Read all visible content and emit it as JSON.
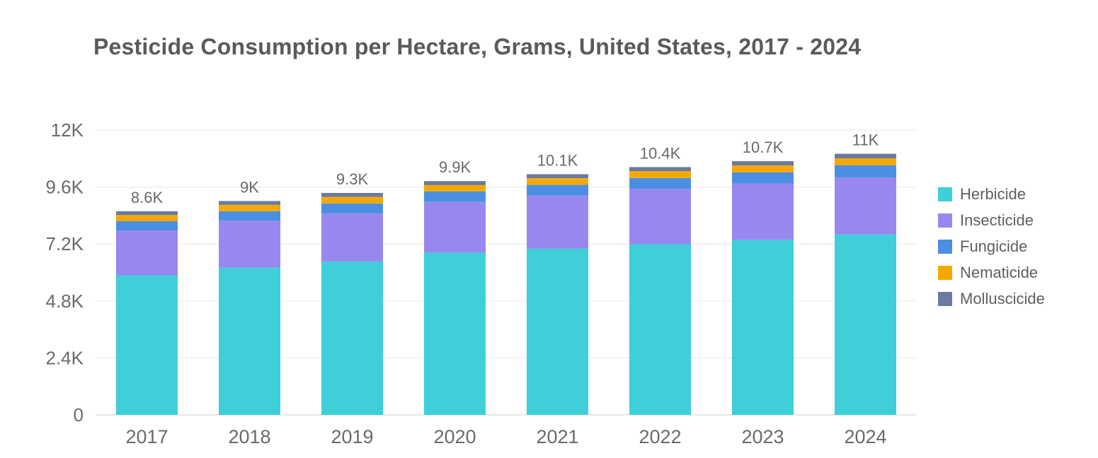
{
  "chart_data": {
    "type": "bar",
    "stacked": true,
    "title": "Pesticide Consumption per Hectare, Grams, United States, 2017 - 2024",
    "xlabel": "",
    "ylabel": "",
    "ylim": [
      0,
      12000
    ],
    "yticks": [
      0,
      2400,
      4800,
      7200,
      9600,
      12000
    ],
    "ytick_labels": [
      "0",
      "2.4K",
      "4.8K",
      "7.2K",
      "9.6K",
      "12K"
    ],
    "categories": [
      "2017",
      "2018",
      "2019",
      "2020",
      "2021",
      "2022",
      "2023",
      "2024"
    ],
    "totals_labels": [
      "8.6K",
      "9K",
      "9.3K",
      "9.9K",
      "10.1K",
      "10.4K",
      "10.7K",
      "11K"
    ],
    "grid": true,
    "legend_position": "right",
    "series": [
      {
        "name": "Herbicide",
        "color": "#3ecfd9",
        "values": [
          5880,
          6200,
          6450,
          6830,
          7000,
          7190,
          7380,
          7600
        ]
      },
      {
        "name": "Insecticide",
        "color": "#9788f0",
        "values": [
          1890,
          1980,
          2040,
          2140,
          2240,
          2330,
          2370,
          2400
        ]
      },
      {
        "name": "Fungicide",
        "color": "#4a8fe2",
        "values": [
          390,
          400,
          420,
          450,
          450,
          460,
          470,
          520
        ]
      },
      {
        "name": "Nematicide",
        "color": "#f7a800",
        "values": [
          260,
          270,
          270,
          260,
          280,
          290,
          290,
          290
        ]
      },
      {
        "name": "Molluscicide",
        "color": "#6b7a9e",
        "values": [
          160,
          160,
          170,
          170,
          170,
          170,
          180,
          190
        ]
      }
    ]
  }
}
